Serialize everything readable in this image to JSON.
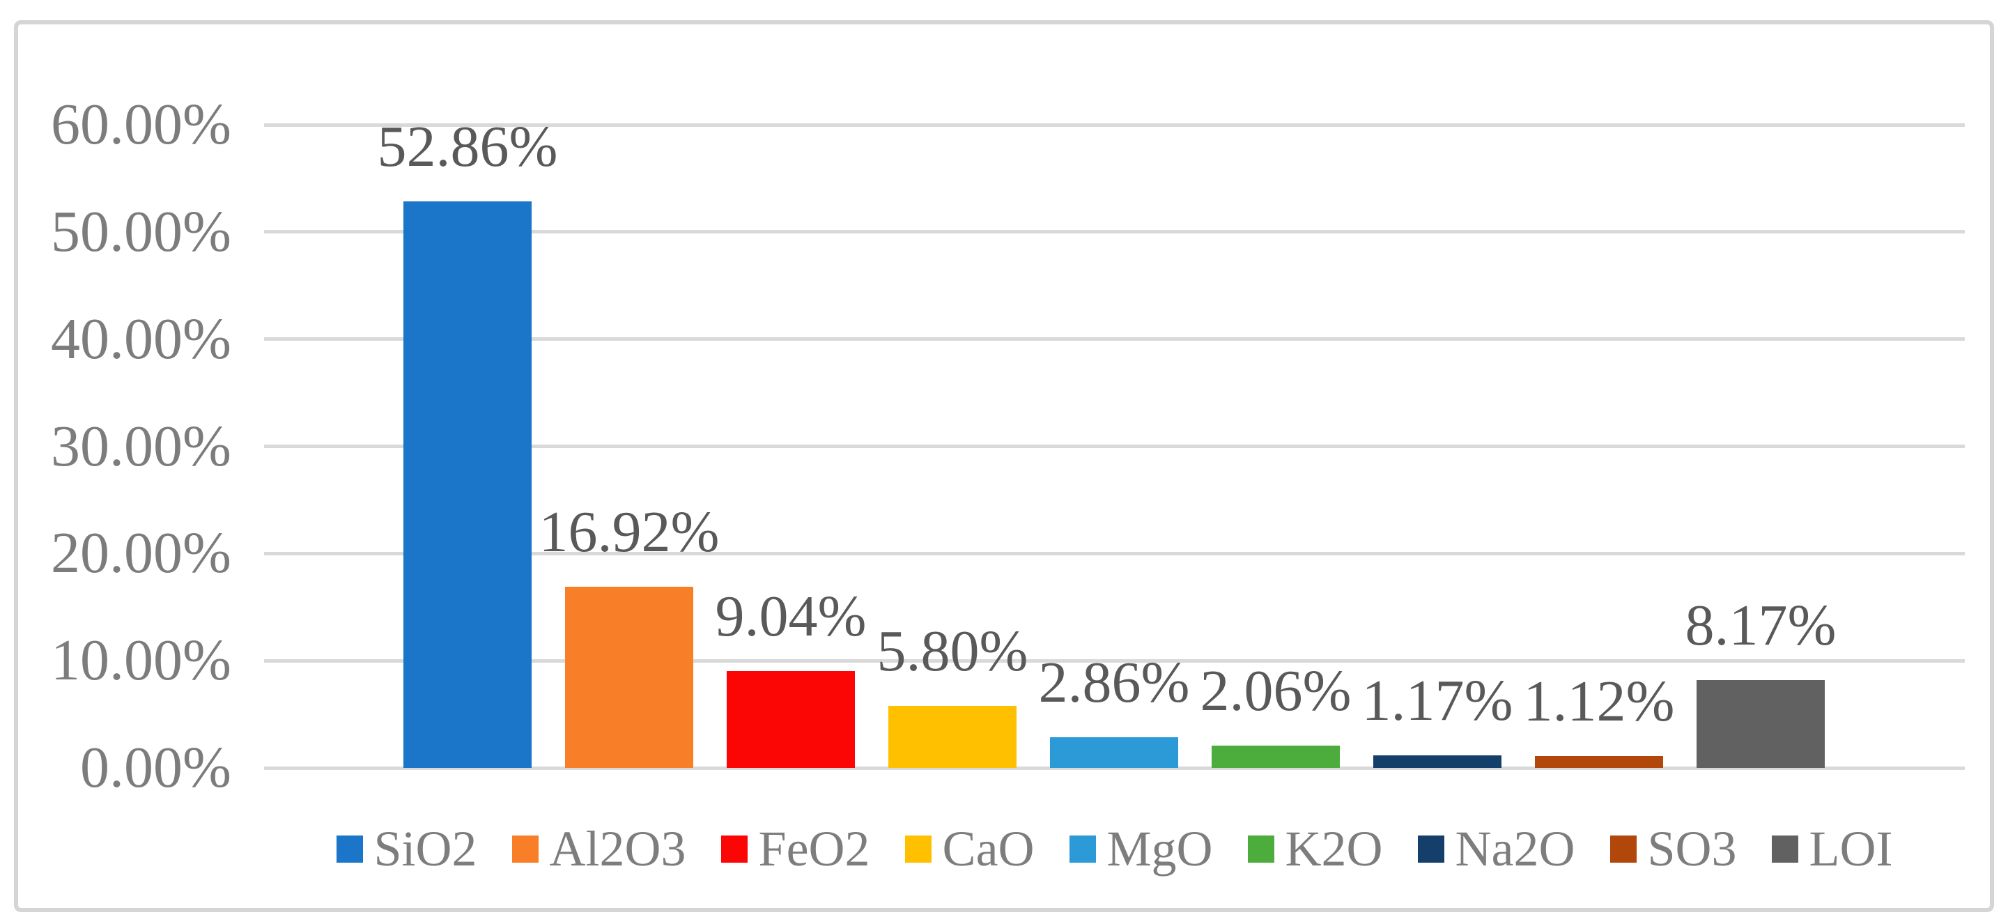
{
  "chart_data": {
    "type": "bar",
    "title": "",
    "xlabel": "",
    "ylabel": "",
    "categories": [
      "SiO2",
      "Al2O3",
      "FeO2",
      "CaO",
      "MgO",
      "K2O",
      "Na2O",
      "SO3",
      "LOI"
    ],
    "values": [
      52.86,
      16.92,
      9.04,
      5.8,
      2.86,
      2.06,
      1.17,
      1.12,
      8.17
    ],
    "data_labels": [
      "52.86%",
      "16.92%",
      "9.04%",
      "5.80%",
      "2.86%",
      "2.06%",
      "1.17%",
      "1.12%",
      "8.17%"
    ],
    "bar_colors": [
      "#1B75C8",
      "#F87E28",
      "#FB0505",
      "#FFC000",
      "#2B9AD7",
      "#4CAD3C",
      "#153F6B",
      "#B2470B",
      "#616161"
    ],
    "ylim": [
      0,
      60
    ],
    "ytick_step": 10,
    "ytick_labels": [
      "0.00%",
      "10.00%",
      "20.00%",
      "30.00%",
      "40.00%",
      "50.00%",
      "60.00%"
    ],
    "grid": true,
    "legend_position": "bottom",
    "legend_entries": [
      "SiO2",
      "Al2O3",
      "FeO2",
      "CaO",
      "MgO",
      "K2O",
      "Na2O",
      "SO3",
      "LOI"
    ]
  },
  "styles": {
    "background": "#FFFFFF",
    "gridline_color": "#D9D9D9",
    "border_color": "#D5D5D5",
    "axis_text_color": "#7C7C7C",
    "data_label_color": "#595959",
    "legend_text_color": "#7D7D7D"
  }
}
